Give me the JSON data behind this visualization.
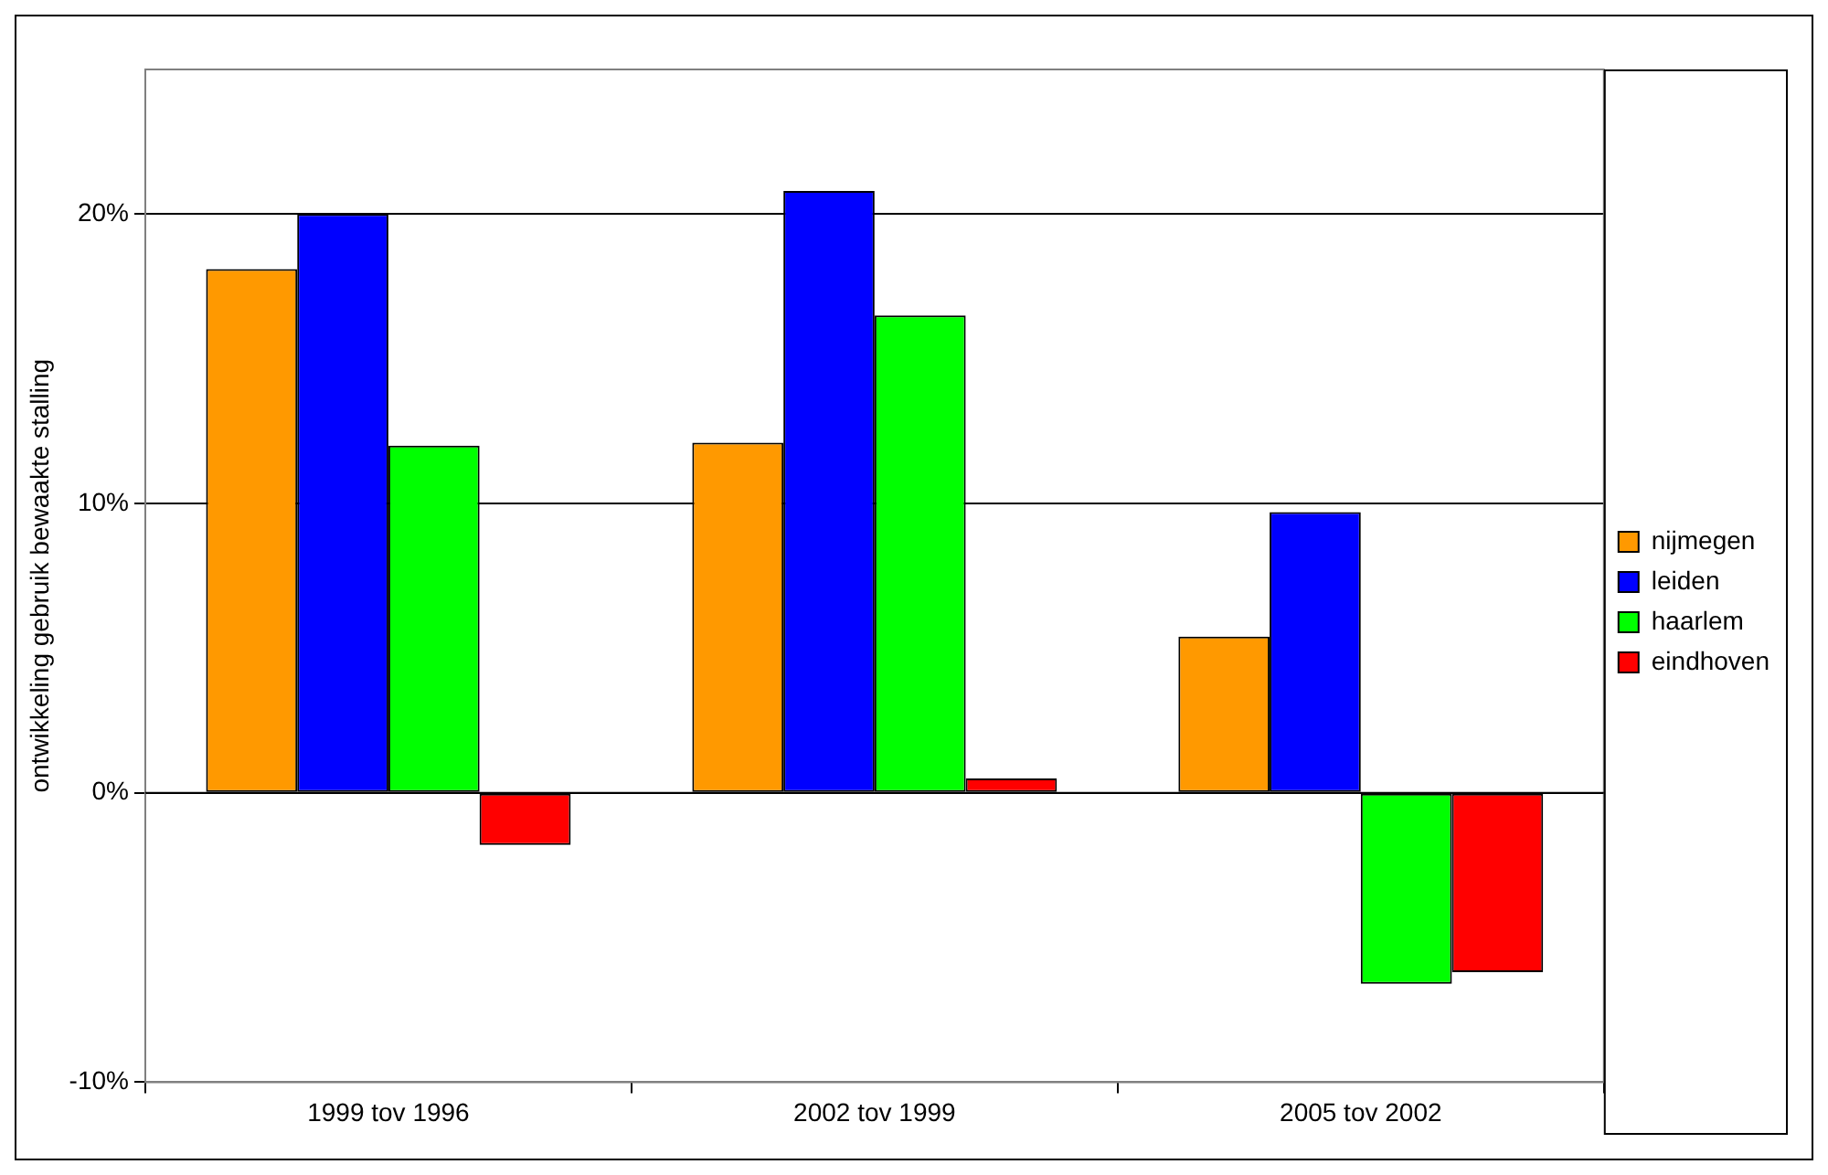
{
  "chart_data": {
    "type": "bar",
    "ylabel": "ontwikkeling gebruik bewaakte stalling",
    "categories": [
      "1999 tov 1996",
      "2002 tov 1999",
      "2005 tov 2002"
    ],
    "series": [
      {
        "name": "nijmegen",
        "color": "#ff9900",
        "values": [
          18.1,
          12.1,
          5.4
        ]
      },
      {
        "name": "leiden",
        "color": "#0000ff",
        "values": [
          20.0,
          20.8,
          9.7
        ]
      },
      {
        "name": "haarlem",
        "color": "#00ff00",
        "values": [
          12.0,
          16.5,
          -6.6
        ]
      },
      {
        "name": "eindhoven",
        "color": "#ff0000",
        "values": [
          -1.8,
          0.5,
          -6.2
        ]
      }
    ],
    "ylim": [
      -10,
      25
    ],
    "yticks": [
      {
        "value": -10,
        "label": "-10%"
      },
      {
        "value": 0,
        "label": "0%"
      },
      {
        "value": 10,
        "label": "10%"
      },
      {
        "value": 20,
        "label": "20%"
      }
    ],
    "grid": "y",
    "legend": "right"
  }
}
